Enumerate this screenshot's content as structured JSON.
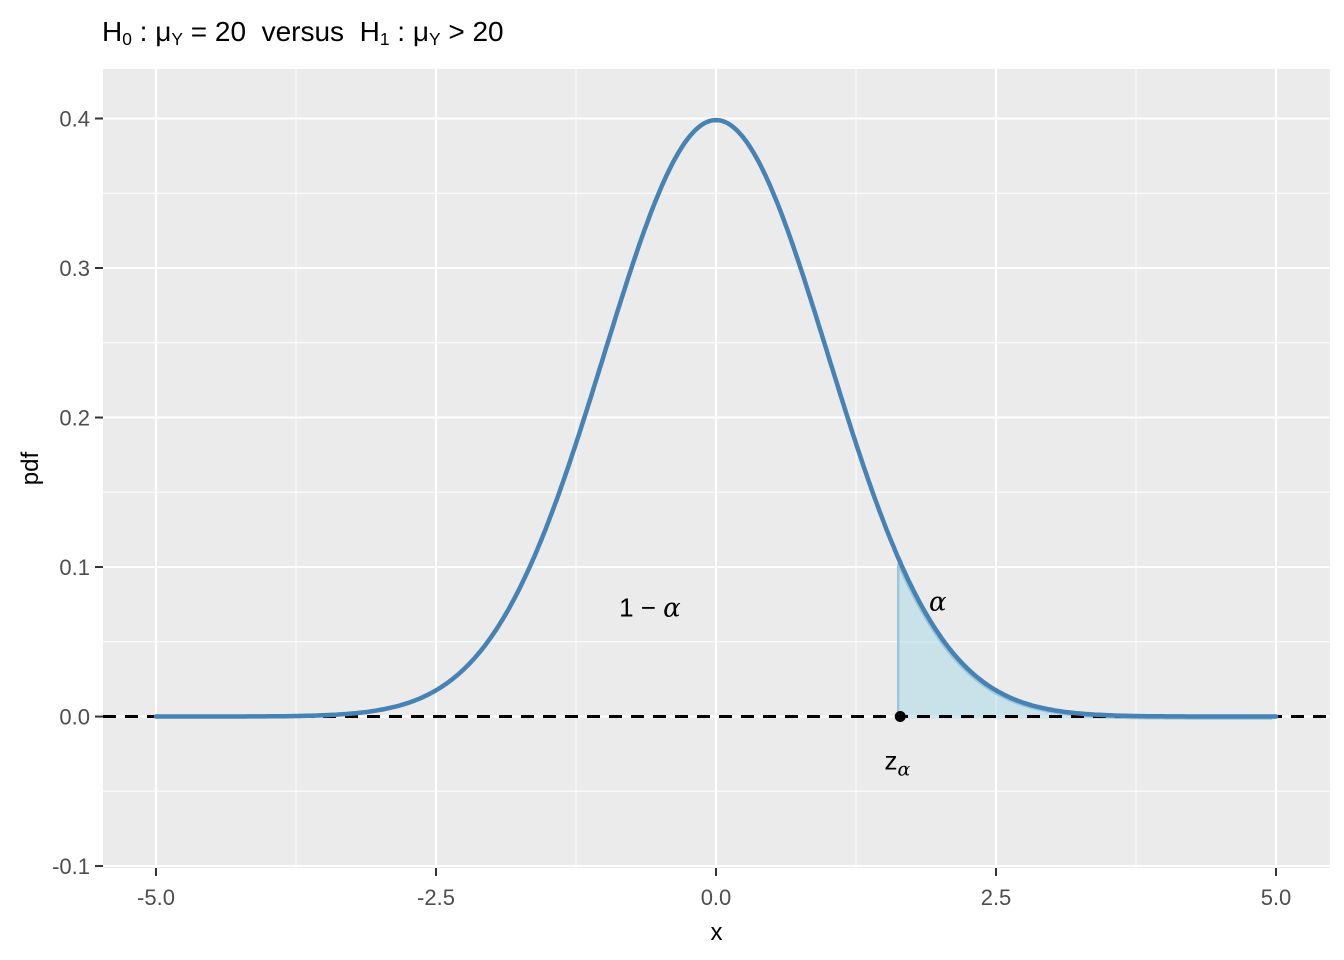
{
  "chart_data": {
    "type": "line",
    "title_segments": [
      {
        "t": "H"
      },
      {
        "t": "0",
        "sub": true
      },
      {
        "t": " : "
      },
      {
        "t": "μ"
      },
      {
        "t": "Y",
        "sub": true
      },
      {
        "t": " = 20  versus  H"
      },
      {
        "t": "1",
        "sub": true
      },
      {
        "t": " : "
      },
      {
        "t": "μ"
      },
      {
        "t": "Y",
        "sub": true
      },
      {
        "t": " > 20"
      }
    ],
    "xlabel": "x",
    "ylabel": "pdf",
    "curve": {
      "name": "standard-normal-pdf",
      "x_range": [
        -5,
        5
      ],
      "peak_value": 0.3989
    },
    "region": {
      "name": "rejection-region",
      "from": 1.645,
      "to": 5
    },
    "hline_y": 0,
    "point": {
      "x": 1.645,
      "y": 0
    },
    "annotations": [
      {
        "id": "one-minus-alpha-label",
        "x": -0.59,
        "y": 0.073,
        "segments": [
          {
            "t": "1 − ",
            "f": "plain"
          },
          {
            "t": "α",
            "f": "greek"
          }
        ]
      },
      {
        "id": "alpha-label",
        "x": 1.98,
        "y": 0.077,
        "segments": [
          {
            "t": "α",
            "f": "greek"
          }
        ]
      },
      {
        "id": "z-alpha-label",
        "x": 1.62,
        "y": -0.0295,
        "segments": [
          {
            "t": "z",
            "f": "plain"
          },
          {
            "t": "α",
            "f": "greek",
            "sub": true
          }
        ]
      }
    ],
    "x_ticks": [
      {
        "v": -5,
        "label": "-5.0"
      },
      {
        "v": -2.5,
        "label": "-2.5"
      },
      {
        "v": 0,
        "label": "0.0"
      },
      {
        "v": 2.5,
        "label": "2.5"
      },
      {
        "v": 5,
        "label": "5.0"
      }
    ],
    "y_ticks": [
      {
        "v": 0.4,
        "label": "0.4"
      },
      {
        "v": 0.3,
        "label": "0.3"
      },
      {
        "v": 0.2,
        "label": "0.2"
      },
      {
        "v": 0.1,
        "label": "0.1"
      },
      {
        "v": 0.0,
        "label": "0.0"
      },
      {
        "v": -0.1,
        "label": "-0.1"
      }
    ],
    "x_minor": [
      -3.75,
      -1.25,
      1.25,
      3.75
    ],
    "y_minor": [
      0.35,
      0.25,
      0.15,
      0.05,
      -0.05
    ],
    "x_domain": [
      -5.473,
      5.482
    ],
    "y_domain": [
      -0.1013,
      0.4331
    ],
    "grid": "on",
    "legend": "none",
    "colors": {
      "curve": "#4682B4",
      "region_fill": "#ADD8E6",
      "region_fill_opacity": 0.55,
      "region_outline": "#9CC8DC",
      "hline": "#000000",
      "point": "#000000",
      "panel_bg": "#EBEBEB",
      "grid": "#FFFFFF",
      "tick": "#333333",
      "tick_label": "#4D4D4D",
      "text": "#000000"
    }
  }
}
